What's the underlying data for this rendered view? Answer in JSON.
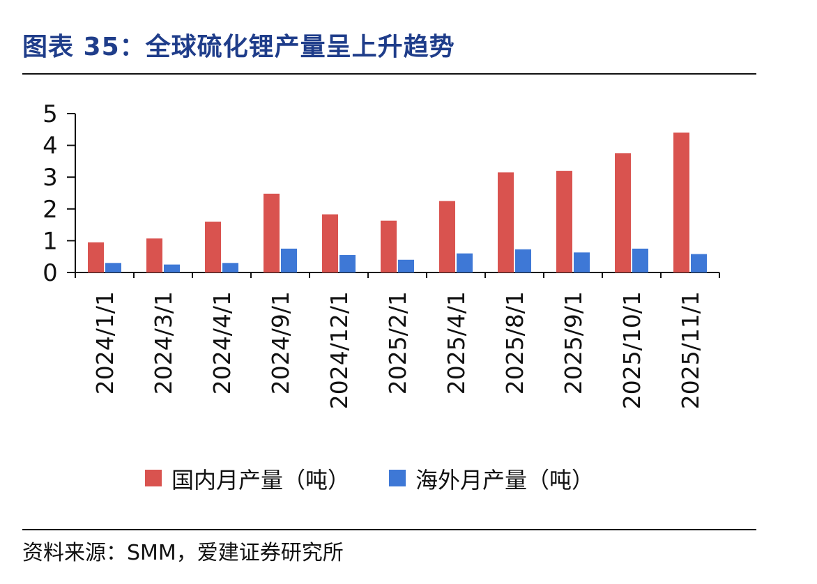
{
  "figure": {
    "title": "图表 35：全球硫化锂产量呈上升趋势",
    "source": "资料来源：SMM，爱建证券研究所"
  },
  "colors": {
    "title": "#1f3d8a",
    "domestic": "#d9534f",
    "overseas": "#3e78d6",
    "axis": "#111111"
  },
  "chart_data": {
    "type": "bar",
    "categories": [
      "2024/1/1",
      "2024/3/1",
      "2024/4/1",
      "2024/9/1",
      "2024/12/1",
      "2025/2/1",
      "2025/4/1",
      "2025/8/1",
      "2025/9/1",
      "2025/10/1",
      "2025/11/1"
    ],
    "series": [
      {
        "name": "国内月产量（吨）",
        "values": [
          0.95,
          1.07,
          1.6,
          2.48,
          1.83,
          1.63,
          2.25,
          3.15,
          3.2,
          3.75,
          4.4
        ]
      },
      {
        "name": "海外月产量（吨）",
        "values": [
          0.3,
          0.25,
          0.3,
          0.75,
          0.55,
          0.4,
          0.6,
          0.73,
          0.63,
          0.75,
          0.58
        ]
      }
    ],
    "yticks": [
      "0",
      "1",
      "2",
      "3",
      "4",
      "5"
    ],
    "ylim": [
      0,
      5
    ],
    "grid": false,
    "legend": "bottom"
  }
}
